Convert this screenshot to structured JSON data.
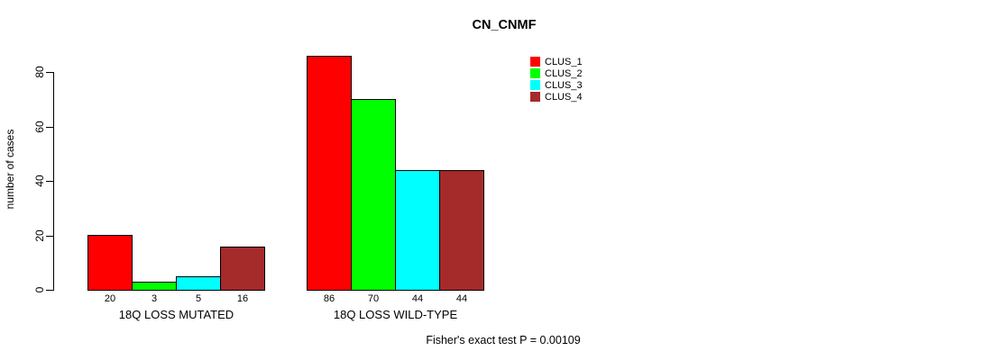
{
  "title": "CN_CNMF",
  "ylabel": "number of cases",
  "footnote": "Fisher's exact test P = 0.00109",
  "chart_data": {
    "type": "bar",
    "title": "CN_CNMF",
    "xlabel": "",
    "ylabel": "number of cases",
    "ylim": [
      0,
      80
    ],
    "yticks": [
      0,
      20,
      40,
      60,
      80
    ],
    "grid": false,
    "legend_position": "top-right",
    "background": "#ffffff",
    "axis_color": "#000000",
    "categories": [
      "18Q LOSS MUTATED",
      "18Q LOSS WILD-TYPE"
    ],
    "series": [
      {
        "name": "CLUS_1",
        "color": "#FF0000",
        "values": [
          20,
          86
        ]
      },
      {
        "name": "CLUS_2",
        "color": "#00FF00",
        "values": [
          3,
          70
        ]
      },
      {
        "name": "CLUS_3",
        "color": "#00FFFF",
        "values": [
          5,
          44
        ]
      },
      {
        "name": "CLUS_4",
        "color": "#A52A2A",
        "values": [
          16,
          44
        ]
      }
    ],
    "bar_value_labels": [
      [
        20,
        3,
        5,
        16
      ],
      [
        86,
        70,
        44,
        44
      ]
    ],
    "annotation": "Fisher's exact test P = 0.00109"
  }
}
